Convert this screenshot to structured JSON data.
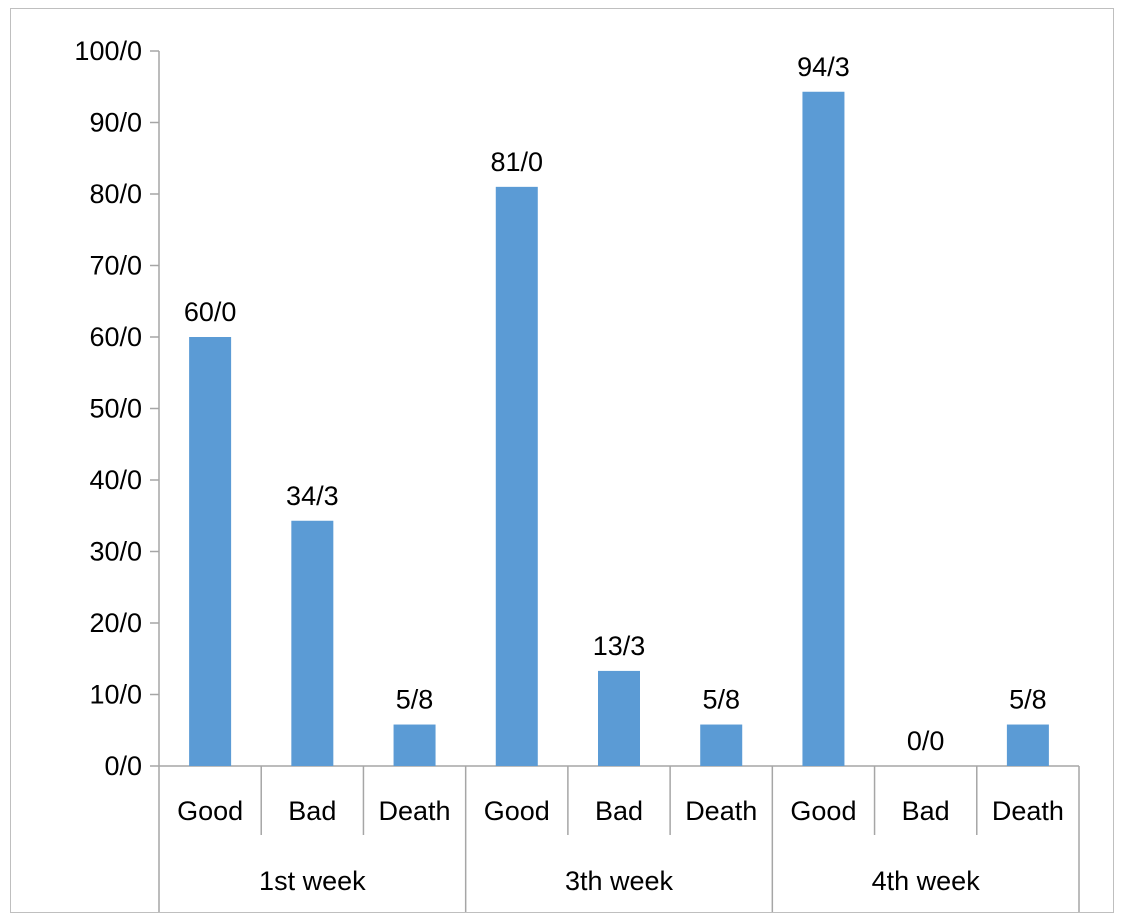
{
  "chart_data": {
    "type": "bar",
    "title": "",
    "xlabel": "",
    "ylabel": "",
    "ylim": [
      0,
      100
    ],
    "y_ticks": [
      0,
      10,
      20,
      30,
      40,
      50,
      60,
      70,
      80,
      90,
      100
    ],
    "y_tick_labels": [
      "0/0",
      "10/0",
      "20/0",
      "30/0",
      "40/0",
      "50/0",
      "60/0",
      "70/0",
      "80/0",
      "90/0",
      "100/0"
    ],
    "groups": [
      "1st week",
      "3th week",
      "4th week"
    ],
    "categories": [
      "Good",
      "Bad",
      "Death",
      "Good",
      "Bad",
      "Death",
      "Good",
      "Bad",
      "Death"
    ],
    "values": [
      60.0,
      34.3,
      5.8,
      81.0,
      13.3,
      5.8,
      94.3,
      0.0,
      5.8
    ],
    "data_labels": [
      "60/0",
      "34/3",
      "5/8",
      "81/0",
      "13/3",
      "5/8",
      "94/3",
      "0/0",
      "5/8"
    ],
    "bar_color": "#5b9bd5",
    "axis_color": "#a6a6a6",
    "grid": false,
    "legend": "none"
  }
}
